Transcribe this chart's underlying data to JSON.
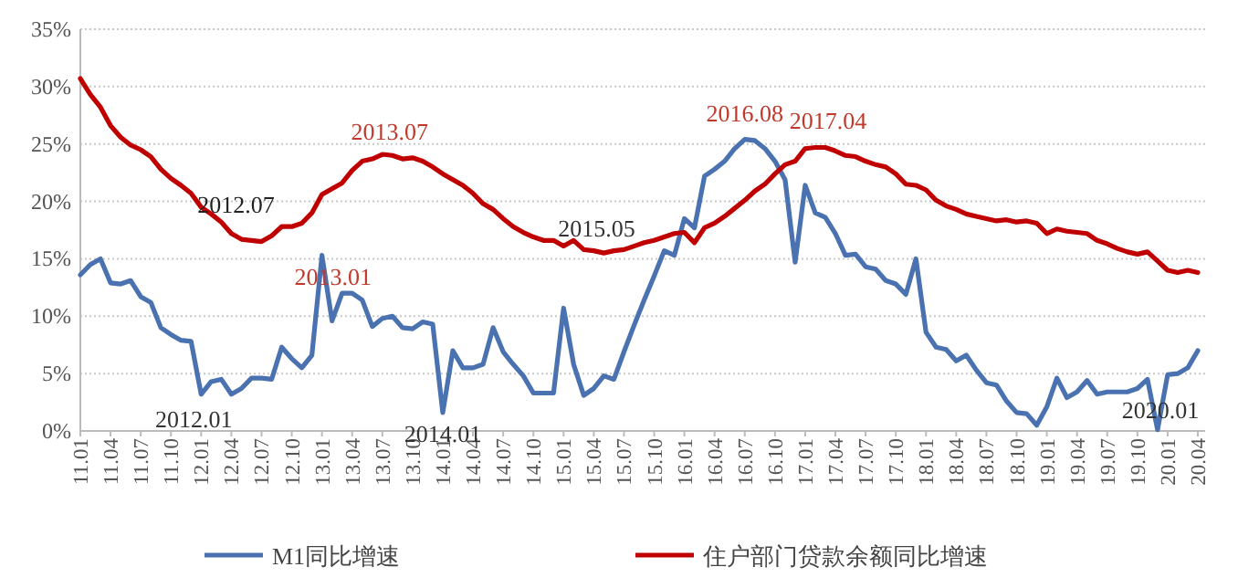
{
  "chart_data": {
    "type": "line",
    "categories": [
      "11.01",
      null,
      null,
      "11.04",
      null,
      null,
      "11.07",
      null,
      null,
      "11.10",
      null,
      null,
      "12.01",
      null,
      null,
      "12.04",
      null,
      null,
      "12.07",
      null,
      null,
      "12.10",
      null,
      null,
      "13.01",
      null,
      null,
      "13.04",
      null,
      null,
      "13.07",
      null,
      null,
      "13.10",
      null,
      null,
      "14.01",
      null,
      null,
      "14.04",
      null,
      null,
      "14.07",
      null,
      null,
      "14.10",
      null,
      null,
      "15.01",
      null,
      null,
      "15.04",
      null,
      null,
      "15.07",
      null,
      null,
      "15.10",
      null,
      null,
      "16.01",
      null,
      null,
      "16.04",
      null,
      null,
      "16.07",
      null,
      null,
      "16.10",
      null,
      null,
      "17.01",
      null,
      null,
      "17.04",
      null,
      null,
      "17.07",
      null,
      null,
      "17.10",
      null,
      null,
      "18.01",
      null,
      null,
      "18.04",
      null,
      null,
      "18.07",
      null,
      null,
      "18.10",
      null,
      null,
      "19.01",
      null,
      null,
      "19.04",
      null,
      null,
      "19.07",
      null,
      null,
      "19.10",
      null,
      null,
      "20.01",
      null,
      null,
      "20.04"
    ],
    "series": [
      {
        "name": "M1同比增速",
        "color": "#4a72b0",
        "values": [
          13.6,
          14.5,
          15.0,
          12.9,
          12.8,
          13.1,
          11.7,
          11.2,
          9.0,
          8.4,
          7.9,
          7.8,
          3.2,
          4.3,
          4.5,
          3.2,
          3.7,
          4.6,
          4.6,
          4.5,
          7.3,
          6.3,
          5.5,
          6.6,
          15.3,
          9.6,
          12.0,
          12.0,
          11.4,
          9.1,
          9.8,
          10.0,
          9.0,
          8.9,
          9.5,
          9.3,
          1.6,
          7.0,
          5.5,
          5.5,
          5.8,
          9.0,
          6.9,
          5.8,
          4.8,
          3.3,
          3.3,
          3.3,
          10.7,
          5.8,
          3.1,
          3.7,
          4.8,
          4.5,
          6.9,
          9.2,
          11.4,
          13.5,
          15.7,
          15.3,
          18.5,
          17.7,
          22.2,
          22.8,
          23.5,
          24.6,
          25.4,
          25.3,
          24.6,
          23.5,
          21.9,
          14.7,
          21.4,
          19.0,
          18.6,
          17.2,
          15.3,
          15.4,
          14.3,
          14.1,
          13.1,
          12.8,
          11.9,
          15.0,
          8.6,
          7.3,
          7.1,
          6.1,
          6.6,
          5.3,
          4.2,
          4.0,
          2.6,
          1.6,
          1.5,
          0.5,
          2.1,
          4.6,
          2.9,
          3.4,
          4.4,
          3.2,
          3.4,
          3.4,
          3.4,
          3.7,
          4.5,
          0.1,
          4.9,
          5.0,
          5.5,
          7.0
        ]
      },
      {
        "name": "住户部门贷款余额同比增速",
        "color": "#c00000",
        "values": [
          30.7,
          29.3,
          28.2,
          26.6,
          25.6,
          24.9,
          24.5,
          23.9,
          22.8,
          22.0,
          21.4,
          20.7,
          19.5,
          18.9,
          18.2,
          17.2,
          16.7,
          16.6,
          16.5,
          17.0,
          17.8,
          17.8,
          18.1,
          19.0,
          20.6,
          21.1,
          21.6,
          22.7,
          23.5,
          23.7,
          24.1,
          24.0,
          23.7,
          23.8,
          23.5,
          23.0,
          22.4,
          21.9,
          21.4,
          20.7,
          19.8,
          19.3,
          18.5,
          17.8,
          17.3,
          16.9,
          16.6,
          16.6,
          16.1,
          16.6,
          15.8,
          15.7,
          15.5,
          15.7,
          15.8,
          16.1,
          16.4,
          16.6,
          16.9,
          17.2,
          17.3,
          16.4,
          17.7,
          18.1,
          18.7,
          19.4,
          20.1,
          20.9,
          21.5,
          22.4,
          23.2,
          23.5,
          24.6,
          24.7,
          24.7,
          24.4,
          24.0,
          23.9,
          23.5,
          23.2,
          23.0,
          22.4,
          21.5,
          21.4,
          21.0,
          20.1,
          19.6,
          19.3,
          18.9,
          18.7,
          18.5,
          18.3,
          18.4,
          18.2,
          18.3,
          18.1,
          17.2,
          17.6,
          17.4,
          17.3,
          17.2,
          16.6,
          16.3,
          15.9,
          15.6,
          15.4,
          15.6,
          14.8,
          14.0,
          13.8,
          14.0,
          13.8
        ]
      }
    ],
    "ylim": [
      0,
      35
    ],
    "yticks": [
      {
        "value": 0,
        "label": "0%"
      },
      {
        "value": 5,
        "label": "5%"
      },
      {
        "value": 10,
        "label": "10%"
      },
      {
        "value": 15,
        "label": "15%"
      },
      {
        "value": 20,
        "label": "20%"
      },
      {
        "value": 25,
        "label": "25%"
      },
      {
        "value": 30,
        "label": "30%"
      },
      {
        "value": 35,
        "label": "35%"
      }
    ],
    "grid": "y",
    "legend": "bottom",
    "marker": "none",
    "line_style": "solid",
    "annotations": [
      {
        "text": "2012.07",
        "x": "12.07",
        "y": 16.5
      },
      {
        "text": "2013.01",
        "x": "13.01",
        "y": 15.3
      },
      {
        "text": "2013.07",
        "x": "13.07",
        "y": 24.1
      },
      {
        "text": "2012.01",
        "x": "12.01",
        "y": 3.2
      },
      {
        "text": "2014.01",
        "x": "14.01",
        "y": 1.6
      },
      {
        "text": "2015.05",
        "y": 15.5
      },
      {
        "text": "2016.08",
        "y": 25.4
      },
      {
        "text": "2017.04",
        "x": "17.04",
        "y": 24.4
      },
      {
        "text": "2020.01",
        "x": "20.01",
        "y": 4.9
      }
    ]
  }
}
